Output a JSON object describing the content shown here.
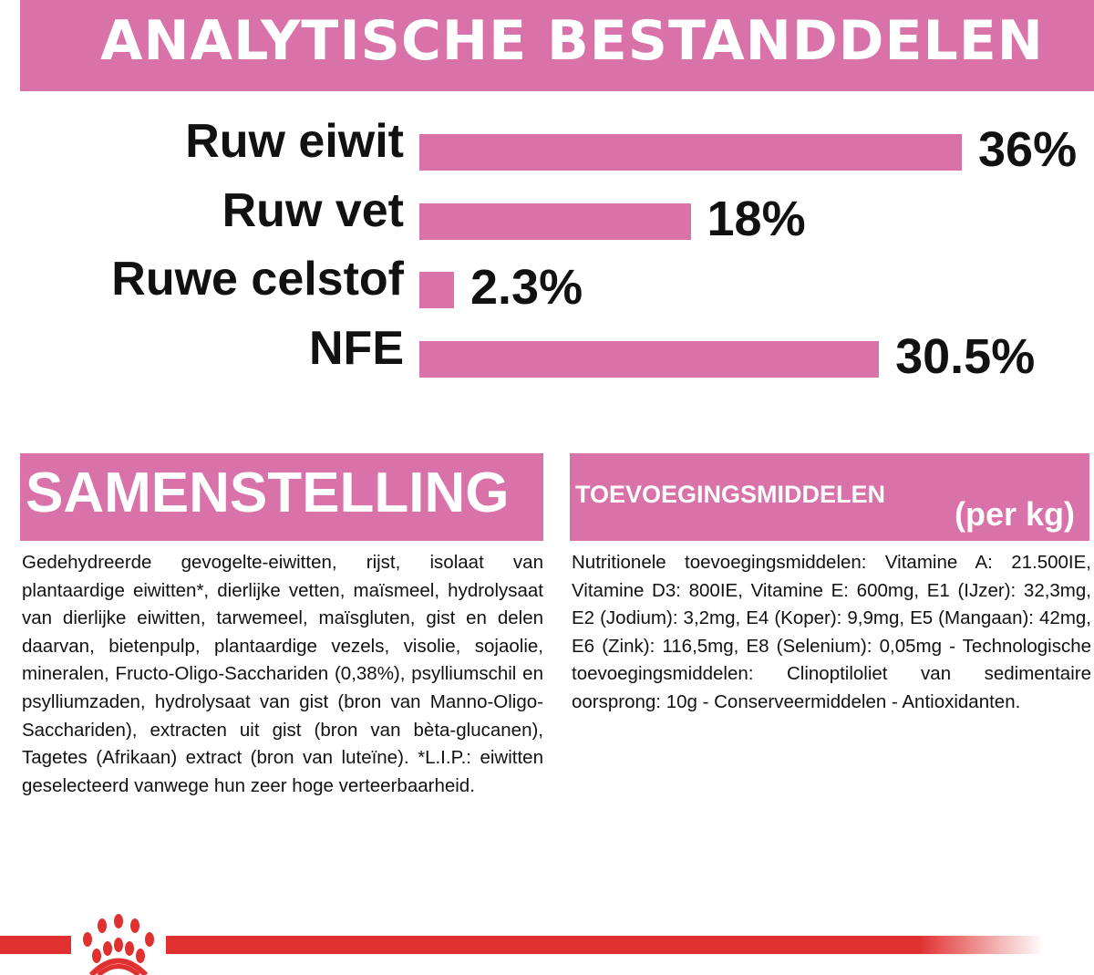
{
  "header": {
    "title": "ANALYTISCHE BESTANDDELEN"
  },
  "colors": {
    "accent": "#d872a8",
    "brand_red": "#e03030"
  },
  "chart_data": {
    "type": "bar",
    "orientation": "horizontal",
    "categories": [
      "Ruw eiwit",
      "Ruw vet",
      "Ruwe celstof",
      "NFE"
    ],
    "values": [
      36,
      18,
      2.3,
      30.5
    ],
    "data_labels": [
      "36%",
      "18%",
      "2.3%",
      "30.5%"
    ],
    "unit": "%",
    "grid": false
  },
  "composition": {
    "title": "SAMENSTELLING",
    "text": "Gedehydreerde gevogelte-eiwitten, rijst, isolaat van plantaardige eiwitten*, dierlijke vetten, maïsmeel, hydrolysaat van dierlijke eiwitten, tarwemeel, maïsgluten, gist en delen daarvan, bietenpulp, plantaardige vezels, visolie, sojaolie, mineralen, Fructo-Oligo-Sacchariden (0,38%), psylliumschil en psylliumzaden, hydrolysaat van gist (bron van Manno-Oligo-Sacchariden), extracten uit gist (bron van bèta-glucanen), Tagetes (Afrikaan) extract (bron van luteïne). *L.I.P.: eiwitten geselecteerd vanwege hun zeer hoge verteerbaarheid."
  },
  "additives": {
    "title": "TOEVOEGINGSMIDDELEN",
    "unit": "(per kg)",
    "text": "Nutritionele toevoegingsmiddelen: Vitamine A: 21.500IE, Vitamine D3: 800IE, Vitamine E: 600mg, E1 (IJzer): 32,3mg, E2 (Jodium): 3,2mg, E4 (Koper): 9,9mg, E5 (Mangaan): 42mg, E6 (Zink): 116,5mg, E8 (Selenium): 0,05mg - Technologische toevoegingsmiddelen: Clinoptiloliet van sedimentaire oorsprong: 10g - Conserveermiddelen - Antioxidanten."
  },
  "footer": {
    "logo_icon": "royal-canin-crown-icon"
  }
}
